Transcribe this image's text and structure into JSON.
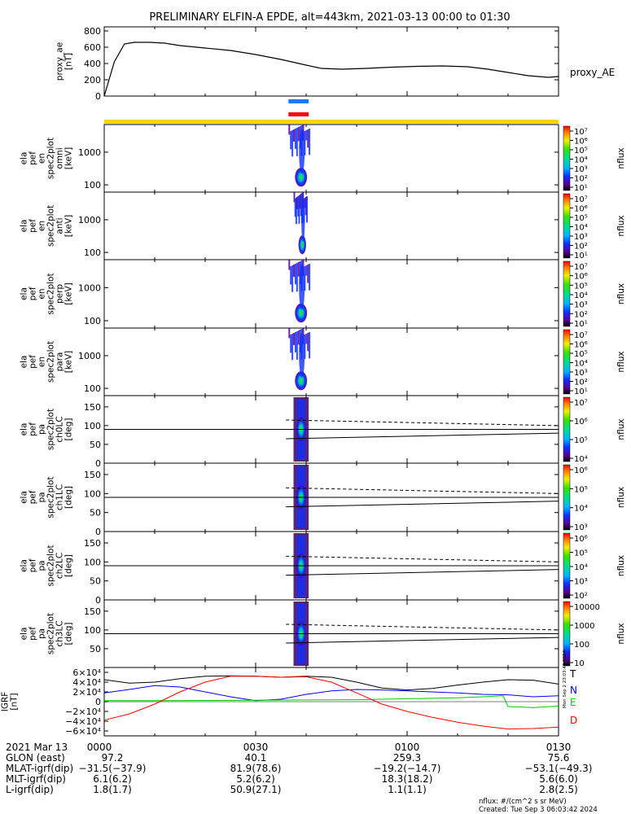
{
  "title": "PRELIMINARY ELFIN-A EPDE, alt=443km, 2021-03-13 00:00 to 01:30",
  "colors": {
    "yellow_bar": "#ffd400",
    "blue_bar": "#1e78ff",
    "red_bar": "#ff0000",
    "igrf_T": "#000000",
    "igrf_N": "#0000ff",
    "igrf_E": "#00cc00",
    "igrf_D": "#ff0000"
  },
  "chart_data": [
    {
      "type": "line",
      "panel": "proxy_ae",
      "ylabel_lines": [
        "proxy_ae",
        "[nT]"
      ],
      "series_label": "proxy_AE",
      "ylim": [
        0,
        850
      ],
      "y_ticks": [
        "800",
        "600",
        "400",
        "200",
        "0"
      ],
      "y_tick_values": [
        800,
        600,
        400,
        200,
        0
      ],
      "x_minutes": [
        0,
        2,
        4,
        6,
        9,
        12,
        15,
        20,
        25,
        30,
        35,
        40,
        43,
        47,
        52,
        57,
        62,
        67,
        72,
        76,
        80,
        84,
        88,
        90
      ],
      "values": [
        0,
        420,
        640,
        660,
        660,
        650,
        620,
        590,
        560,
        510,
        450,
        380,
        340,
        330,
        340,
        355,
        365,
        370,
        360,
        330,
        290,
        250,
        230,
        240
      ]
    },
    {
      "type": "heatmap",
      "panel": "omni",
      "ylabel_lines": [
        "ela",
        "pef",
        "en",
        "spec2plot",
        "omni",
        "[keV]"
      ],
      "y_ticks": [
        "1000",
        "100"
      ],
      "y_tick_values": [
        1000,
        100
      ],
      "y_scale": "log",
      "ylim": [
        60,
        7000
      ],
      "colorbar_ticks": [
        "10⁷",
        "10⁶",
        "10⁵",
        "10⁴",
        "10³",
        "10²",
        "10¹"
      ],
      "colorbar_label": "nflux",
      "active_minutes": [
        36.5,
        40.5
      ]
    },
    {
      "type": "heatmap",
      "panel": "anti",
      "ylabel_lines": [
        "ela",
        "pef",
        "en",
        "spec2plot",
        "anti",
        "[keV]"
      ],
      "y_ticks": [
        "1000",
        "100"
      ],
      "y_tick_values": [
        1000,
        100
      ],
      "y_scale": "log",
      "ylim": [
        60,
        7000
      ],
      "colorbar_ticks": [
        "10⁷",
        "10⁶",
        "10⁵",
        "10⁴",
        "10³",
        "10²",
        "10¹"
      ],
      "colorbar_label": "nflux",
      "active_minutes": [
        37.5,
        40
      ]
    },
    {
      "type": "heatmap",
      "panel": "perp",
      "ylabel_lines": [
        "ela",
        "pef",
        "en",
        "spec2plot",
        "perp",
        "[keV]"
      ],
      "y_ticks": [
        "1000",
        "100"
      ],
      "y_tick_values": [
        1000,
        100
      ],
      "y_scale": "log",
      "ylim": [
        60,
        7000
      ],
      "colorbar_ticks": [
        "10⁷",
        "10⁶",
        "10⁵",
        "10⁴",
        "10³",
        "10²",
        "10¹"
      ],
      "colorbar_label": "nflux",
      "active_minutes": [
        36.5,
        40.5
      ]
    },
    {
      "type": "heatmap",
      "panel": "para",
      "ylabel_lines": [
        "ela",
        "pef",
        "en",
        "spec2plot",
        "para",
        "[keV]"
      ],
      "y_ticks": [
        "1000",
        "100"
      ],
      "y_tick_values": [
        1000,
        100
      ],
      "y_scale": "log",
      "ylim": [
        60,
        7000
      ],
      "colorbar_ticks": [
        "10⁷",
        "10⁶",
        "10⁵",
        "10⁴",
        "10³",
        "10²",
        "10¹"
      ],
      "colorbar_label": "nflux",
      "active_minutes": [
        36.5,
        40.5
      ]
    },
    {
      "type": "heatmap",
      "panel": "ch0LC",
      "ylabel_lines": [
        "ela",
        "pef",
        "pa",
        "spec2plot",
        "ch0LC",
        "[deg]"
      ],
      "y_ticks": [
        "150",
        "100",
        "50",
        "0"
      ],
      "y_tick_values": [
        150,
        100,
        50,
        0
      ],
      "ylim": [
        0,
        180
      ],
      "colorbar_ticks": [
        "10⁷",
        "10⁶",
        "10⁵",
        "10⁴"
      ],
      "colorbar_label": "nflux",
      "lc_x_minutes": [
        36,
        90
      ],
      "lc_values": [
        65,
        80
      ],
      "alc_values": [
        115,
        100
      ],
      "active_minutes": [
        37.5,
        40.5
      ]
    },
    {
      "type": "heatmap",
      "panel": "ch1LC",
      "ylabel_lines": [
        "ela",
        "pef",
        "pa",
        "spec2plot",
        "ch1LC",
        "[deg]"
      ],
      "y_ticks": [
        "150",
        "100",
        "50",
        "0"
      ],
      "y_tick_values": [
        150,
        100,
        50,
        0
      ],
      "ylim": [
        0,
        180
      ],
      "colorbar_ticks": [
        "10⁶",
        "10⁵",
        "10⁴",
        "10³"
      ],
      "colorbar_label": "nflux",
      "lc_x_minutes": [
        36,
        90
      ],
      "lc_values": [
        65,
        80
      ],
      "alc_values": [
        115,
        100
      ],
      "active_minutes": [
        37.5,
        40.5
      ]
    },
    {
      "type": "heatmap",
      "panel": "ch2LC",
      "ylabel_lines": [
        "ela",
        "pef",
        "pa",
        "spec2plot",
        "ch2LC",
        "[deg]"
      ],
      "y_ticks": [
        "150",
        "100",
        "50",
        "0"
      ],
      "y_tick_values": [
        150,
        100,
        50,
        0
      ],
      "ylim": [
        0,
        180
      ],
      "colorbar_ticks": [
        "10⁶",
        "10⁵",
        "10⁴",
        "10³",
        "10²"
      ],
      "colorbar_label": "nflux",
      "lc_x_minutes": [
        36,
        90
      ],
      "lc_values": [
        65,
        80
      ],
      "alc_values": [
        115,
        100
      ],
      "active_minutes": [
        37.5,
        40.5
      ]
    },
    {
      "type": "heatmap",
      "panel": "ch3LC",
      "ylabel_lines": [
        "ela",
        "pef",
        "pa",
        "spec2plot",
        "ch3LC",
        "[deg]"
      ],
      "y_ticks": [
        "150",
        "100",
        "50"
      ],
      "y_tick_values": [
        150,
        100,
        50
      ],
      "ylim": [
        0,
        180
      ],
      "colorbar_ticks": [
        "10000",
        "1000",
        "100",
        "10"
      ],
      "colorbar_label": "nflux",
      "lc_x_minutes": [
        36,
        90
      ],
      "lc_values": [
        65,
        80
      ],
      "alc_values": [
        115,
        100
      ],
      "active_minutes": [
        37.5,
        40.5
      ]
    },
    {
      "type": "line",
      "panel": "IGRF",
      "ylabel_lines": [
        "IGRF",
        "[nT]"
      ],
      "y_ticks": [
        "6×10⁴",
        "4×10⁴",
        "2×10⁴",
        "0",
        "−2×10⁴",
        "−4×10⁴",
        "−6×10⁴"
      ],
      "y_tick_values": [
        60000,
        40000,
        20000,
        0,
        -20000,
        -40000,
        -60000
      ],
      "ylim": [
        -70000,
        70000
      ],
      "series": [
        {
          "name": "T",
          "x": [
            0,
            5,
            10,
            15,
            20,
            25,
            30,
            35,
            40,
            45,
            50,
            55,
            60,
            65,
            70,
            75,
            80,
            85,
            90
          ],
          "values": [
            45000,
            38000,
            40000,
            47000,
            52000,
            53000,
            52000,
            50000,
            52000,
            50000,
            40000,
            28000,
            24000,
            27000,
            34000,
            40000,
            45000,
            44000,
            36000
          ]
        },
        {
          "name": "N",
          "x": [
            0,
            5,
            10,
            15,
            20,
            25,
            30,
            35,
            40,
            45,
            50,
            55,
            60,
            65,
            70,
            75,
            80,
            85,
            90
          ],
          "values": [
            18000,
            25000,
            33000,
            30000,
            20000,
            10000,
            2000,
            5000,
            15000,
            22000,
            25000,
            24000,
            22000,
            20000,
            18000,
            15000,
            14000,
            10000,
            12000
          ]
        },
        {
          "name": "E",
          "x": [
            0,
            10,
            20,
            30,
            40,
            50,
            60,
            70,
            75,
            79,
            80,
            85,
            90
          ],
          "values": [
            2000,
            2000,
            2500,
            3000,
            3500,
            4000,
            6000,
            8000,
            10000,
            12000,
            -10000,
            -12000,
            -9000
          ]
        },
        {
          "name": "D",
          "x": [
            0,
            5,
            10,
            15,
            20,
            25,
            30,
            35,
            40,
            45,
            50,
            55,
            60,
            65,
            70,
            75,
            80,
            85,
            90
          ],
          "values": [
            -38000,
            -25000,
            -5000,
            20000,
            40000,
            52000,
            52000,
            50000,
            51000,
            40000,
            18000,
            -5000,
            -20000,
            -32000,
            -42000,
            -50000,
            -56000,
            -55000,
            -52000
          ]
        }
      ]
    }
  ],
  "time_axis": {
    "ticks": [
      "0000",
      "0030",
      "0100",
      "0130"
    ],
    "tick_minutes": [
      0,
      30,
      60,
      90
    ],
    "date_label": "2021 Mar 13"
  },
  "ephemeris": [
    {
      "label": "GLON (east)",
      "values": [
        "97.2",
        "40.1",
        "259.3",
        "75.6"
      ]
    },
    {
      "label": "MLAT-igrf(dip)",
      "values": [
        "−31.5(−37.9)",
        "81.9(78.6)",
        "−19.2(−14.7)",
        "−53.1(−49.3)"
      ]
    },
    {
      "label": "MLT-igrf(dip)",
      "values": [
        "6.1(6.2)",
        "5.2(6.2)",
        "18.3(18.2)",
        "5.6(6.0)"
      ]
    },
    {
      "label": "L-igrf(dip)",
      "values": [
        "1.8(1.7)",
        "50.9(27.1)",
        "1.1(1.1)",
        "2.8(2.5)"
      ]
    }
  ],
  "footer": {
    "units": "nflux: #/(cm^2 s sr MeV)",
    "created": "Created: Tue Sep  3 06:03:42 2024",
    "stamp": "Mon Sep  2 23:03:42 2024"
  }
}
